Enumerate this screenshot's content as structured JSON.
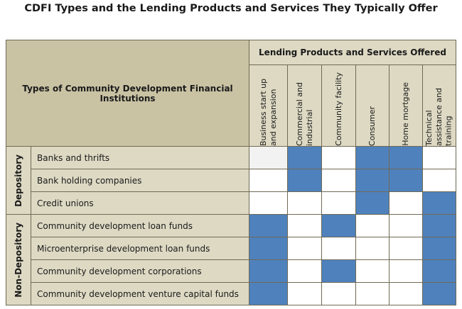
{
  "title": "CDFI Types and the Lending Products and Services They Typically Offer",
  "header": {
    "types": "Types of Community Development Financial Institutions",
    "lending": "Lending Products and Services Offered"
  },
  "columns": [
    "Business start up and expansion",
    "Commercial and industrial",
    "Community facility",
    "Consumer",
    "Home mortgage",
    "Technical assistance and training"
  ],
  "groups": [
    {
      "label": "Depository"
    },
    {
      "label": "Non-Depository"
    }
  ],
  "rows": [
    {
      "label": "Banks and thrifts",
      "cells": [
        "light",
        "blue",
        "white",
        "blue",
        "blue",
        "white"
      ]
    },
    {
      "label": "Bank holding companies",
      "cells": [
        "white",
        "blue",
        "white",
        "blue",
        "blue",
        "white"
      ]
    },
    {
      "label": "Credit unions",
      "cells": [
        "white",
        "white",
        "white",
        "blue",
        "white",
        "blue"
      ]
    },
    {
      "label": "Community development loan funds",
      "cells": [
        "blue",
        "white",
        "blue",
        "white",
        "white",
        "blue"
      ]
    },
    {
      "label": "Microenterprise development loan funds",
      "cells": [
        "blue",
        "white",
        "white",
        "white",
        "white",
        "blue"
      ]
    },
    {
      "label": "Community development corporations",
      "cells": [
        "blue",
        "white",
        "blue",
        "white",
        "white",
        "blue"
      ]
    },
    {
      "label": "Community development venture capital funds",
      "cells": [
        "blue",
        "white",
        "white",
        "white",
        "white",
        "blue"
      ]
    }
  ],
  "colors": {
    "blue": "#4f81bd",
    "white": "#ffffff",
    "light": "#f2f2f2",
    "tan": "#ddd9c3",
    "border": "#6f6a54"
  }
}
